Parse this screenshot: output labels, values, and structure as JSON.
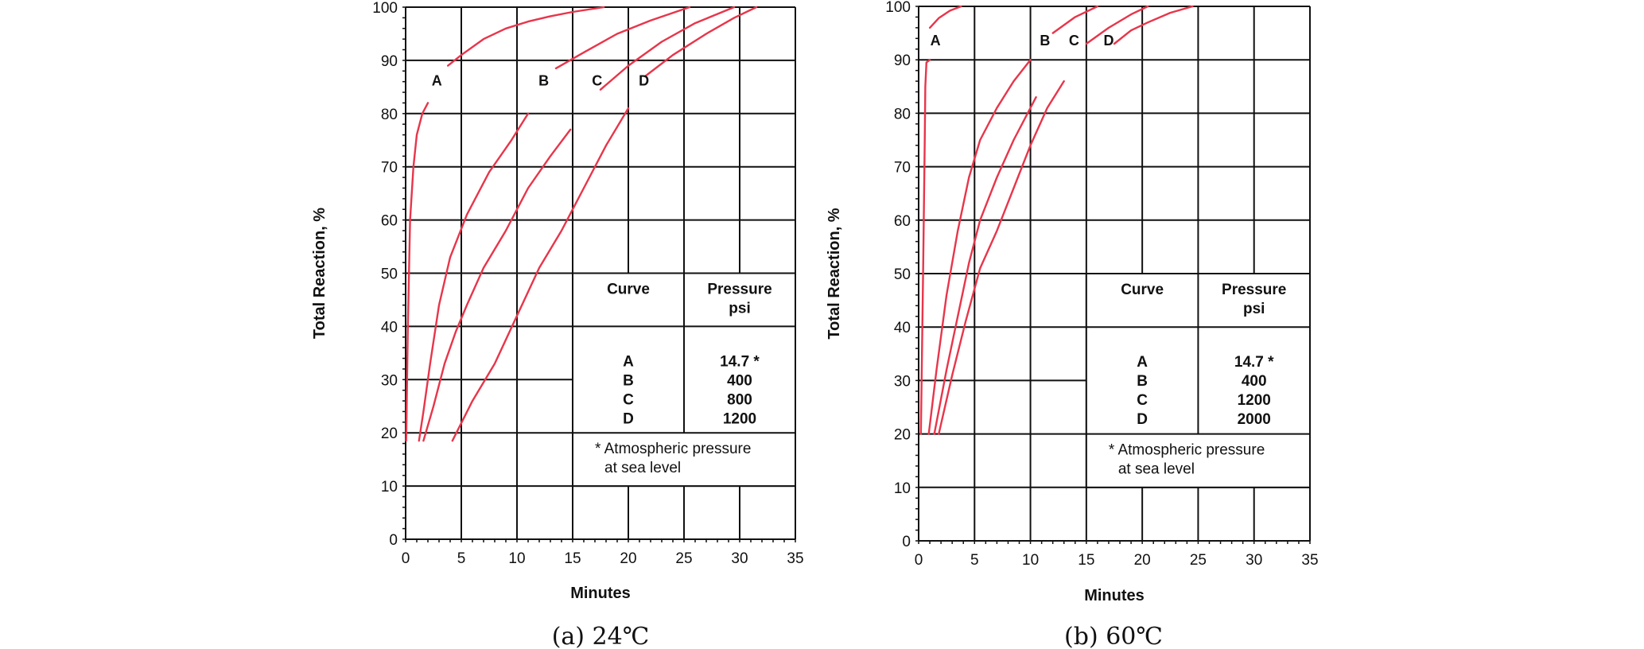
{
  "chart_data": [
    {
      "type": "line",
      "caption": "(a) 24℃",
      "xlabel": "Minutes",
      "ylabel": "Total Reaction, %",
      "xlim": [
        0,
        35
      ],
      "ylim": [
        0,
        100
      ],
      "xticks": [
        "0",
        "5",
        "10",
        "15",
        "20",
        "25",
        "30",
        "35"
      ],
      "yticks": [
        "0",
        "10",
        "20",
        "30",
        "40",
        "50",
        "60",
        "70",
        "80",
        "90",
        "100"
      ],
      "grid": true,
      "series": [
        {
          "name": "A",
          "color": "#e8354a",
          "x": [
            0.05,
            0.2,
            0.4,
            0.7,
            1.0,
            1.5,
            2.0
          ],
          "y": [
            18.5,
            40,
            60,
            70,
            76,
            80,
            82
          ]
        },
        {
          "name": "A",
          "color": "#e8354a",
          "x": [
            3.8,
            5,
            7,
            9,
            11,
            13,
            15,
            17.8
          ],
          "y": [
            89,
            91,
            94,
            96,
            97.3,
            98.3,
            99.1,
            100
          ]
        },
        {
          "name": "B",
          "color": "#e8354a",
          "x": [
            1.2,
            1.6,
            2.2,
            3.0,
            4.0,
            5.5,
            7.5,
            9.5,
            11.0
          ],
          "y": [
            18.5,
            24,
            33,
            44,
            53,
            61,
            69,
            75,
            80
          ]
        },
        {
          "name": "B",
          "color": "#e8354a",
          "x": [
            13.5,
            16,
            19,
            22,
            25.5
          ],
          "y": [
            88.5,
            91.5,
            95,
            97.5,
            100
          ]
        },
        {
          "name": "C",
          "color": "#e8354a",
          "x": [
            1.6,
            2.5,
            3.5,
            4.5,
            5.5,
            7,
            9,
            11,
            13,
            14.8
          ],
          "y": [
            18.5,
            25,
            33,
            39,
            44,
            51,
            58,
            66,
            72,
            77
          ]
        },
        {
          "name": "C",
          "color": "#e8354a",
          "x": [
            17.5,
            20,
            23,
            26,
            29.5
          ],
          "y": [
            84.5,
            89,
            93.5,
            97,
            100
          ]
        },
        {
          "name": "D",
          "color": "#e8354a",
          "x": [
            4.2,
            6,
            8,
            10,
            12,
            14,
            16,
            18,
            20
          ],
          "y": [
            18.5,
            26,
            33,
            42,
            51,
            58,
            66,
            74,
            81
          ]
        },
        {
          "name": "D",
          "color": "#e8354a",
          "x": [
            21.5,
            24,
            27,
            29.5,
            31.5
          ],
          "y": [
            87,
            91,
            95,
            98,
            100
          ]
        }
      ],
      "curve_labels": [
        {
          "text": "A",
          "x": 2.8,
          "y": 85.3
        },
        {
          "text": "B",
          "x": 12.4,
          "y": 85.3
        },
        {
          "text": "C",
          "x": 17.2,
          "y": 85.3
        },
        {
          "text": "D",
          "x": 21.4,
          "y": 85.3
        }
      ],
      "legend": {
        "header_curve": "Curve",
        "header_pressure_1": "Pressure",
        "header_pressure_2": "psi",
        "rows": [
          {
            "curve": "A",
            "pressure": "14.7 *"
          },
          {
            "curve": "B",
            "pressure": "400"
          },
          {
            "curve": "C",
            "pressure": "800"
          },
          {
            "curve": "D",
            "pressure": "1200"
          }
        ],
        "note_1": "* Atmospheric pressure",
        "note_2": "at sea level"
      }
    },
    {
      "type": "line",
      "caption": "(b) 60℃",
      "xlabel": "Minutes",
      "ylabel": "Total Reaction, %",
      "xlim": [
        0,
        35
      ],
      "ylim": [
        0,
        100
      ],
      "xticks": [
        "0",
        "5",
        "10",
        "15",
        "20",
        "25",
        "30",
        "35"
      ],
      "yticks": [
        "0",
        "10",
        "20",
        "30",
        "40",
        "50",
        "60",
        "70",
        "80",
        "90",
        "100"
      ],
      "grid": true,
      "series": [
        {
          "name": "A",
          "color": "#e8354a",
          "x": [
            0.2,
            0.4,
            0.55,
            0.6,
            0.7,
            1.0
          ],
          "y": [
            20,
            50,
            75,
            85,
            89.5,
            90
          ]
        },
        {
          "name": "A",
          "color": "#e8354a",
          "x": [
            1.0,
            1.8,
            2.8,
            3.8
          ],
          "y": [
            96,
            97.8,
            99.2,
            100
          ]
        },
        {
          "name": "B",
          "color": "#e8354a",
          "x": [
            0.9,
            1.6,
            2.5,
            3.5,
            4.5,
            5.5,
            7,
            8.5,
            10
          ],
          "y": [
            20,
            32,
            46,
            58,
            68,
            75,
            81,
            86,
            90
          ]
        },
        {
          "name": "B",
          "color": "#e8354a",
          "x": [
            12,
            14,
            16
          ],
          "y": [
            95,
            98,
            100
          ]
        },
        {
          "name": "C",
          "color": "#e8354a",
          "x": [
            1.4,
            2.5,
            3.5,
            4.5,
            5.5,
            7,
            8.5,
            10.5
          ],
          "y": [
            20,
            32,
            42,
            52,
            60,
            68,
            75,
            83
          ]
        },
        {
          "name": "C",
          "color": "#e8354a",
          "x": [
            15,
            17,
            19,
            20.5
          ],
          "y": [
            93,
            96,
            98.5,
            100
          ]
        },
        {
          "name": "D",
          "color": "#e8354a",
          "x": [
            1.8,
            3,
            4.2,
            5.5,
            7,
            8.5,
            10,
            11.5,
            13
          ],
          "y": [
            20,
            31,
            41,
            51,
            58,
            66,
            74,
            81,
            86
          ]
        },
        {
          "name": "D",
          "color": "#e8354a",
          "x": [
            17.5,
            19,
            20.5,
            22.5,
            24.5
          ],
          "y": [
            93,
            95.5,
            97,
            98.8,
            100
          ]
        }
      ],
      "curve_labels": [
        {
          "text": "A",
          "x": 1.5,
          "y": 92.7
        },
        {
          "text": "B",
          "x": 11.3,
          "y": 92.7
        },
        {
          "text": "C",
          "x": 13.9,
          "y": 92.7
        },
        {
          "text": "D",
          "x": 17.0,
          "y": 92.7
        }
      ],
      "legend": {
        "header_curve": "Curve",
        "header_pressure_1": "Pressure",
        "header_pressure_2": "psi",
        "rows": [
          {
            "curve": "A",
            "pressure": "14.7 *"
          },
          {
            "curve": "B",
            "pressure": "400"
          },
          {
            "curve": "C",
            "pressure": "1200"
          },
          {
            "curve": "D",
            "pressure": "2000"
          }
        ],
        "note_1": "* Atmospheric pressure",
        "note_2": "at sea level"
      }
    }
  ]
}
